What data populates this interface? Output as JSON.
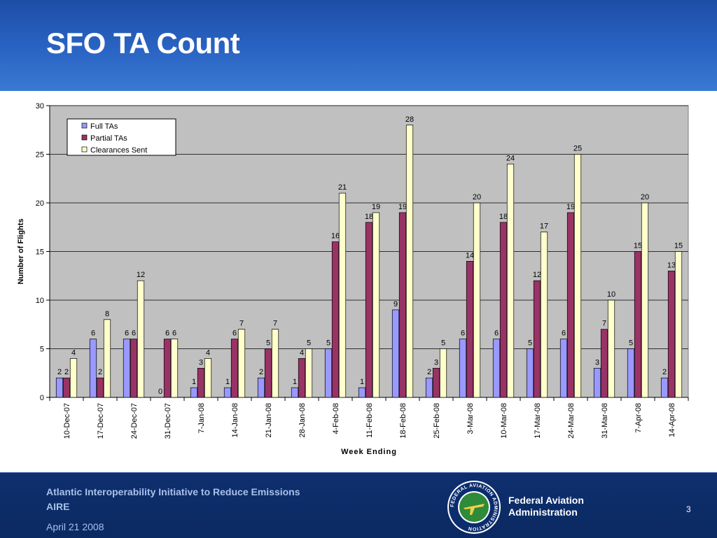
{
  "slide": {
    "title": "SFO TA Count",
    "footer_line1": "Atlantic Interoperability Initiative to Reduce Emissions",
    "footer_line2": "AIRE",
    "footer_date": "April 21 2008",
    "agency_line1": "Federal Aviation",
    "agency_line2": "Administration",
    "page_number": "3",
    "seal_text": "FEDERAL AVIATION ADMINISTRATION",
    "colors": {
      "header": "#2a64c4",
      "footer": "#0b2a63",
      "footer_text": "#a9c0ea",
      "plot_background": "#c0c0c0"
    }
  },
  "chart_data": {
    "type": "bar",
    "title": "",
    "xlabel": "Week Ending",
    "ylabel": "Number of Flights",
    "ylim": [
      0,
      30
    ],
    "yticks": [
      0,
      5,
      10,
      15,
      20,
      25,
      30
    ],
    "grid": true,
    "legend_position": "top-left",
    "categories": [
      "10-Dec-07",
      "17-Dec-07",
      "24-Dec-07",
      "31-Dec-07",
      "7-Jan-08",
      "14-Jan-08",
      "21-Jan-08",
      "28-Jan-08",
      "4-Feb-08",
      "11-Feb-08",
      "18-Feb-08",
      "25-Feb-08",
      "3-Mar-08",
      "10-Mar-08",
      "17-Mar-08",
      "24-Mar-08",
      "31-Mar-08",
      "7-Apr-08",
      "14-Apr-08"
    ],
    "series": [
      {
        "name": "Full TAs",
        "color": "#9999ff",
        "values": [
          2,
          6,
          6,
          0,
          1,
          1,
          2,
          1,
          5,
          1,
          9,
          2,
          6,
          6,
          5,
          6,
          3,
          5,
          2
        ]
      },
      {
        "name": "Partial TAs",
        "color": "#993366",
        "values": [
          2,
          2,
          6,
          6,
          3,
          6,
          5,
          4,
          16,
          18,
          19,
          3,
          14,
          18,
          12,
          19,
          7,
          15,
          13
        ]
      },
      {
        "name": "Clearances Sent",
        "color": "#ffffcc",
        "values": [
          4,
          8,
          12,
          6,
          4,
          7,
          7,
          5,
          21,
          19,
          28,
          5,
          20,
          24,
          17,
          25,
          10,
          20,
          15
        ]
      }
    ]
  }
}
